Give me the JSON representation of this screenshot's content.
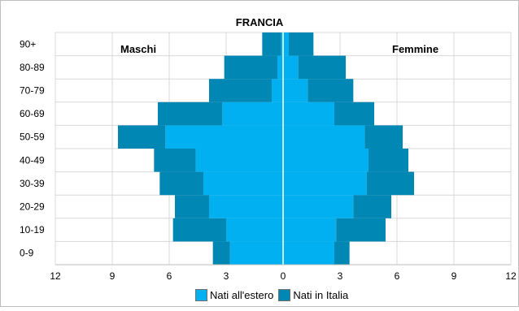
{
  "chart_data": {
    "type": "bar",
    "title": "FRANCIA",
    "left_label": "Maschi",
    "right_label": "Femmine",
    "categories": [
      "0-9",
      "10-19",
      "20-29",
      "30-39",
      "40-49",
      "50-59",
      "60-69",
      "70-79",
      "80-89",
      "90+"
    ],
    "series": [
      {
        "name": "Nati all'estero",
        "color": "#00b0f0",
        "male": [
          2.8,
          3.0,
          3.9,
          4.2,
          4.6,
          6.2,
          3.2,
          0.6,
          0.3,
          0.1
        ],
        "female": [
          2.7,
          2.8,
          3.7,
          4.4,
          4.5,
          4.3,
          2.7,
          1.3,
          0.8,
          0.3
        ]
      },
      {
        "name": "Nati in Italia",
        "color": "#0087b3",
        "male": [
          0.9,
          2.8,
          1.8,
          2.3,
          2.2,
          2.5,
          3.4,
          3.3,
          2.8,
          1.0
        ],
        "female": [
          0.8,
          2.6,
          2.0,
          2.5,
          2.1,
          2.0,
          2.1,
          2.4,
          2.5,
          1.3
        ]
      }
    ],
    "x_ticks": [
      "12",
      "9",
      "6",
      "3",
      "0",
      "3",
      "6",
      "9",
      "12"
    ],
    "xlim": [
      -12,
      12
    ],
    "grid": true,
    "legend": "bottom"
  }
}
